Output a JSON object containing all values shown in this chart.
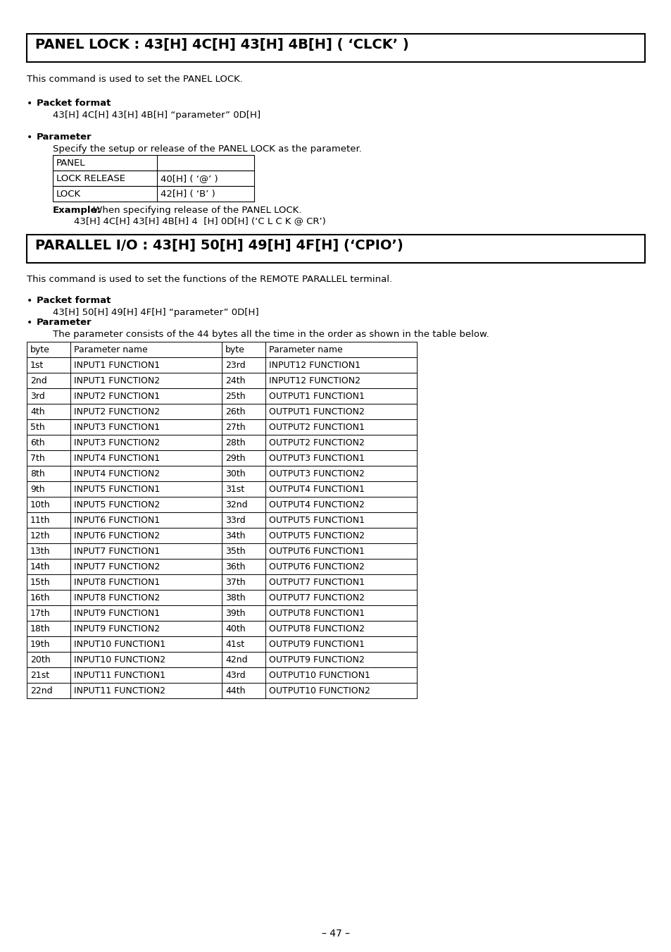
{
  "bg_color": "#ffffff",
  "title1": "PANEL LOCK : 43[H] 4C[H] 43[H] 4B[H] ( ‘CLCK’ )",
  "desc1": "This command is used to set the PANEL LOCK.",
  "bullet1_title": "Packet format",
  "bullet1_text": "43[H] 4C[H] 43[H] 4B[H] “parameter” 0D[H]",
  "bullet2_title": "Parameter",
  "bullet2_text": "Specify the setup or release of the PANEL LOCK as the parameter.",
  "panel_table": [
    [
      "PANEL",
      ""
    ],
    [
      "LOCK RELEASE",
      "40[H] ( ‘@’ )"
    ],
    [
      "LOCK",
      "42[H] ( ‘B’ )"
    ]
  ],
  "example_label": "Example:",
  "example_text1": " When specifying release of the PANEL LOCK.",
  "example_text2": "43[H] 4C[H] 43[H] 4B[H] 4  [H] 0D[H] (‘C L C K @ CR’)",
  "title2": "PARALLEL I/O : 43[H] 50[H] 49[H] 4F[H] (‘CPIO’)",
  "desc2": "This command is used to set the functions of the REMOTE PARALLEL terminal.",
  "bullet3_title": "Packet format",
  "bullet3_text": "43[H] 50[H] 49[H] 4F[H] “parameter” 0D[H]",
  "bullet4_title": "Parameter",
  "bullet4_text": "The parameter consists of the 44 bytes all the time in the order as shown in the table below.",
  "param_table_headers": [
    "byte",
    "Parameter name",
    "byte",
    "Parameter name"
  ],
  "param_table_rows": [
    [
      "1st",
      "INPUT1 FUNCTION1",
      "23rd",
      "INPUT12 FUNCTION1"
    ],
    [
      "2nd",
      "INPUT1 FUNCTION2",
      "24th",
      "INPUT12 FUNCTION2"
    ],
    [
      "3rd",
      "INPUT2 FUNCTION1",
      "25th",
      "OUTPUT1 FUNCTION1"
    ],
    [
      "4th",
      "INPUT2 FUNCTION2",
      "26th",
      "OUTPUT1 FUNCTION2"
    ],
    [
      "5th",
      "INPUT3 FUNCTION1",
      "27th",
      "OUTPUT2 FUNCTION1"
    ],
    [
      "6th",
      "INPUT3 FUNCTION2",
      "28th",
      "OUTPUT2 FUNCTION2"
    ],
    [
      "7th",
      "INPUT4 FUNCTION1",
      "29th",
      "OUTPUT3 FUNCTION1"
    ],
    [
      "8th",
      "INPUT4 FUNCTION2",
      "30th",
      "OUTPUT3 FUNCTION2"
    ],
    [
      "9th",
      "INPUT5 FUNCTION1",
      "31st",
      "OUTPUT4 FUNCTION1"
    ],
    [
      "10th",
      "INPUT5 FUNCTION2",
      "32nd",
      "OUTPUT4 FUNCTION2"
    ],
    [
      "11th",
      "INPUT6 FUNCTION1",
      "33rd",
      "OUTPUT5 FUNCTION1"
    ],
    [
      "12th",
      "INPUT6 FUNCTION2",
      "34th",
      "OUTPUT5 FUNCTION2"
    ],
    [
      "13th",
      "INPUT7 FUNCTION1",
      "35th",
      "OUTPUT6 FUNCTION1"
    ],
    [
      "14th",
      "INPUT7 FUNCTION2",
      "36th",
      "OUTPUT6 FUNCTION2"
    ],
    [
      "15th",
      "INPUT8 FUNCTION1",
      "37th",
      "OUTPUT7 FUNCTION1"
    ],
    [
      "16th",
      "INPUT8 FUNCTION2",
      "38th",
      "OUTPUT7 FUNCTION2"
    ],
    [
      "17th",
      "INPUT9 FUNCTION1",
      "39th",
      "OUTPUT8 FUNCTION1"
    ],
    [
      "18th",
      "INPUT9 FUNCTION2",
      "40th",
      "OUTPUT8 FUNCTION2"
    ],
    [
      "19th",
      "INPUT10 FUNCTION1",
      "41st",
      "OUTPUT9 FUNCTION1"
    ],
    [
      "20th",
      "INPUT10 FUNCTION2",
      "42nd",
      "OUTPUT9 FUNCTION2"
    ],
    [
      "21st",
      "INPUT11 FUNCTION1",
      "43rd",
      "OUTPUT10 FUNCTION1"
    ],
    [
      "22nd",
      "INPUT11 FUNCTION2",
      "44th",
      "OUTPUT10 FUNCTION2"
    ]
  ],
  "page_number": "– 47 –"
}
